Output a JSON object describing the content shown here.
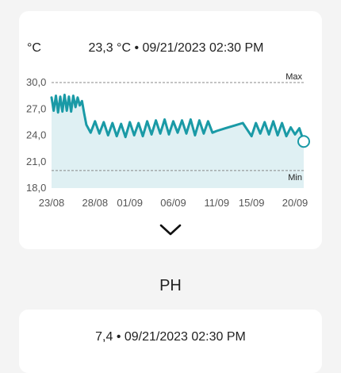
{
  "temperature_card": {
    "unit": "°C",
    "reading": "23,3 °C • 09/21/2023 02:30 PM",
    "expand_icon": "chevron-down-icon"
  },
  "ph_section": {
    "title": "PH",
    "reading": "7,4 • 09/21/2023 02:30 PM"
  },
  "colors": {
    "line": "#1a9aa6",
    "fill": "#dff0f3",
    "reference": "#888888"
  },
  "chart_data": {
    "type": "line",
    "xlabel": "",
    "ylabel": "",
    "ylim": [
      18,
      30
    ],
    "yticks": [
      18,
      21,
      24,
      27,
      30
    ],
    "ytick_labels": [
      "18,0",
      "21,0",
      "24,0",
      "27,0",
      "30,0"
    ],
    "xtick_labels": [
      "23/08",
      "28/08",
      "01/09",
      "06/09",
      "11/09",
      "15/09",
      "20/09"
    ],
    "xtick_positions": [
      0,
      5,
      9,
      14,
      19,
      23,
      28
    ],
    "xlim": [
      0,
      29
    ],
    "reference_lines": [
      {
        "label": "Max",
        "value": 30
      },
      {
        "label": "Min",
        "value": 20
      }
    ],
    "series": [
      {
        "x": [
          0,
          0.25,
          0.5,
          0.75,
          1,
          1.25,
          1.5,
          1.75,
          2,
          2.25,
          2.5,
          2.75,
          3,
          3.25,
          3.5,
          3.75,
          4,
          4.5,
          5,
          5.5,
          6,
          6.5,
          7,
          7.5,
          8,
          8.5,
          9,
          9.5,
          10,
          10.5,
          11,
          11.5,
          12,
          12.5,
          13,
          13.5,
          14,
          14.5,
          15,
          15.5,
          16,
          16.5,
          17,
          17.5,
          18,
          18.5,
          19,
          20,
          21,
          22,
          23,
          23.5,
          24,
          24.5,
          25,
          25.5,
          26,
          26.5,
          27,
          27.5,
          28,
          28.5,
          29
        ],
        "y": [
          28.3,
          26.8,
          28.5,
          26.6,
          28.4,
          26.7,
          28.6,
          26.8,
          28.4,
          26.7,
          28.5,
          27.2,
          28.3,
          27.4,
          27.9,
          26.5,
          25.2,
          24.3,
          25.6,
          24.2,
          25.5,
          24.0,
          25.4,
          23.9,
          25.3,
          23.8,
          25.5,
          24.0,
          25.4,
          23.9,
          25.6,
          24.1,
          25.7,
          24.2,
          25.8,
          24.1,
          25.6,
          24.3,
          25.7,
          24.2,
          25.8,
          24.0,
          25.7,
          24.2,
          25.6,
          24.3,
          24.5,
          24.8,
          25.1,
          25.4,
          23.9,
          25.4,
          24.2,
          25.5,
          24.1,
          25.6,
          24.0,
          25.4,
          23.9,
          24.9,
          24.1,
          24.8,
          23.3
        ]
      }
    ],
    "current_value": 23.3
  }
}
